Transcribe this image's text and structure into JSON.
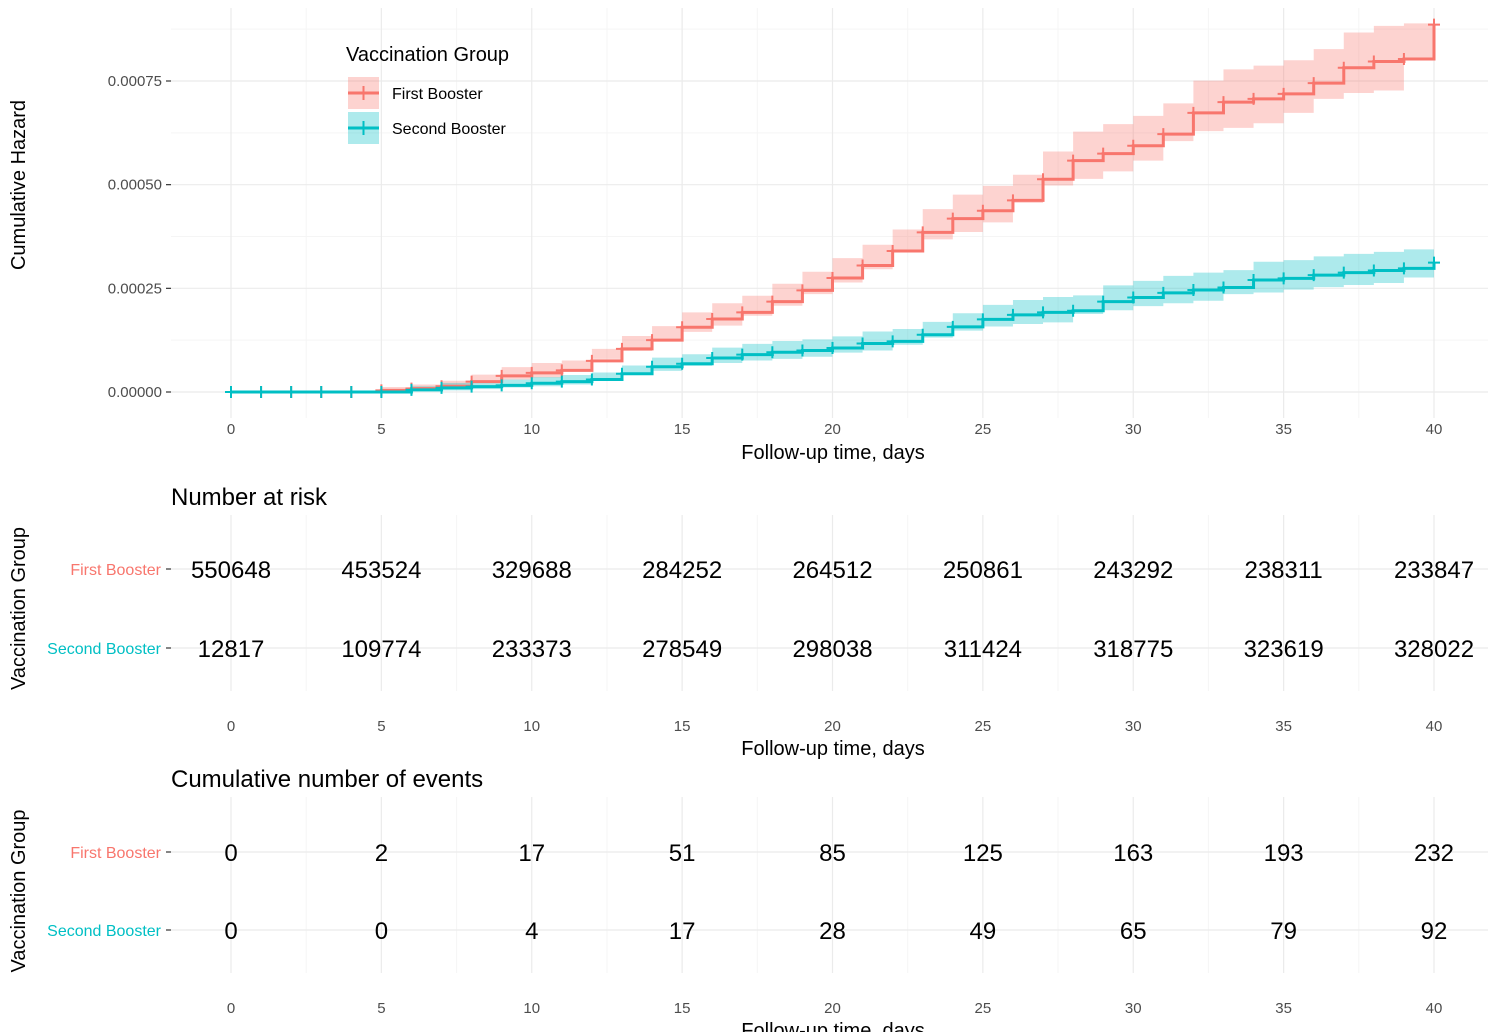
{
  "chart_data": [
    {
      "type": "line",
      "step": true,
      "xlabel": "Follow-up time, days",
      "ylabel": "Cumulative Hazard",
      "xlim": [
        0,
        40
      ],
      "ylim": [
        0,
        0.00075
      ],
      "xticks": [
        "0",
        "5",
        "10",
        "15",
        "20",
        "25",
        "30",
        "35",
        "40"
      ],
      "yticks": [
        "0.00000",
        "0.00025",
        "0.00050",
        "0.00075"
      ],
      "grid": true,
      "legend": {
        "title": "Vaccination Group",
        "placement": "top-left",
        "entries": [
          "First Booster",
          "Second Booster"
        ]
      },
      "series": [
        {
          "name": "First Booster",
          "color": "#f8766d",
          "x": [
            0,
            1,
            2,
            3,
            4,
            5,
            6,
            7,
            8,
            9,
            10,
            11,
            12,
            13,
            14,
            15,
            16,
            17,
            18,
            19,
            20,
            21,
            22,
            23,
            24,
            25,
            26,
            27,
            28,
            29,
            30,
            31,
            32,
            33,
            34,
            35,
            36,
            37,
            38,
            39,
            40
          ],
          "y": [
            0,
            0,
            0,
            0,
            0,
            4e-06,
            8e-06,
            1.4e-05,
            2.5e-05,
            3.9e-05,
            4.6e-05,
            5.2e-05,
            7.5e-05,
            0.000104,
            0.000125,
            0.000156,
            0.000176,
            0.000192,
            0.000218,
            0.000245,
            0.000275,
            0.000305,
            0.00034,
            0.000385,
            0.000418,
            0.000437,
            0.000462,
            0.000513,
            0.000558,
            0.000575,
            0.000594,
            0.000622,
            0.000673,
            0.000699,
            0.000707,
            0.000719,
            0.000745,
            0.000782,
            0.000797,
            0.000803,
            0.000886
          ],
          "ci_lower": [
            0,
            0,
            0,
            0,
            0,
            0,
            1e-06,
            5e-06,
            1.3e-05,
            2.4e-05,
            3e-05,
            3.5e-05,
            5.4e-05,
            8e-05,
            9.9e-05,
            0.000127,
            0.000145,
            0.00016,
            0.000184,
            0.000208,
            0.000236,
            0.000264,
            0.000296,
            0.000338,
            0.000368,
            0.000386,
            0.000409,
            0.000456,
            0.000498,
            0.000514,
            0.000532,
            0.000558,
            0.000605,
            0.000629,
            0.000637,
            0.000648,
            0.000673,
            0.000707,
            0.000721,
            0.000727,
            0.000805
          ],
          "ci_upper": [
            0,
            0,
            0,
            0,
            0,
            1.2e-05,
            1.8e-05,
            2.7e-05,
            4.2e-05,
            6e-05,
            7e-05,
            7.6e-05,
            0.000104,
            0.000135,
            0.000159,
            0.000192,
            0.000214,
            0.000232,
            0.000261,
            0.00029,
            0.000323,
            0.000355,
            0.000392,
            0.000441,
            0.000476,
            0.000497,
            0.000524,
            0.00058,
            0.000628,
            0.000646,
            0.000666,
            0.000696,
            0.000751,
            0.000778,
            0.000787,
            0.0008,
            0.000827,
            0.000867,
            0.000883,
            0.000889,
            0.000903
          ]
        },
        {
          "name": "Second Booster",
          "color": "#00bfc4",
          "x": [
            0,
            1,
            2,
            3,
            4,
            5,
            6,
            7,
            8,
            9,
            10,
            11,
            12,
            13,
            14,
            15,
            16,
            17,
            18,
            19,
            20,
            21,
            22,
            23,
            24,
            25,
            26,
            27,
            28,
            29,
            30,
            31,
            32,
            33,
            34,
            35,
            36,
            37,
            38,
            39,
            40
          ],
          "y": [
            0,
            0,
            0,
            0,
            0,
            0,
            5e-06,
            1e-05,
            1.3e-05,
            1.6e-05,
            2.1e-05,
            2.5e-05,
            3e-05,
            4.4e-05,
            6.1e-05,
            6.8e-05,
            8.2e-05,
            9e-05,
            9.6e-05,
            0.0001,
            0.000106,
            0.000117,
            0.000122,
            0.000138,
            0.000157,
            0.000175,
            0.000186,
            0.000192,
            0.000196,
            0.000218,
            0.000228,
            0.000239,
            0.000246,
            0.000252,
            0.00027,
            0.000274,
            0.000282,
            0.000288,
            0.000293,
            0.000298,
            0.000312
          ],
          "ci_lower": [
            0,
            0,
            0,
            0,
            0,
            0,
            0,
            2e-06,
            4e-06,
            7e-06,
            1.1e-05,
            1.4e-05,
            1.8e-05,
            3e-05,
            4.5e-05,
            5.1e-05,
            6.3e-05,
            7e-05,
            7.6e-05,
            8e-05,
            8.5e-05,
            9.5e-05,
            0.0001,
            0.000114,
            0.000131,
            0.000148,
            0.000158,
            0.000164,
            0.000168,
            0.000188,
            0.000197,
            0.000207,
            0.000214,
            0.00022,
            0.000236,
            0.00024,
            0.000247,
            0.000253,
            0.000258,
            0.000263,
            0.000276
          ],
          "ci_upper": [
            0,
            0,
            0,
            0,
            0,
            0,
            1.4e-05,
            2.2e-05,
            2.6e-05,
            3e-05,
            3.6e-05,
            4.1e-05,
            4.7e-05,
            6.4e-05,
            8.3e-05,
            9.1e-05,
            0.000107,
            0.000116,
            0.000123,
            0.000127,
            0.000134,
            0.000146,
            0.000152,
            0.000169,
            0.00019,
            0.00021,
            0.000222,
            0.000229,
            0.000233,
            0.000257,
            0.000268,
            0.00028,
            0.000288,
            0.000294,
            0.000314,
            0.000318,
            0.000327,
            0.000333,
            0.000338,
            0.000344,
            0.00036
          ]
        }
      ]
    },
    {
      "type": "table",
      "title": "Number at risk",
      "xlabel": "Follow-up time, days",
      "ylabel": "Vaccination Group",
      "columns": [
        "0",
        "5",
        "10",
        "15",
        "20",
        "25",
        "30",
        "35",
        "40"
      ],
      "rows": [
        {
          "name": "First Booster",
          "color": "#f8766d",
          "values": [
            "550648",
            "453524",
            "329688",
            "284252",
            "264512",
            "250861",
            "243292",
            "238311",
            "233847"
          ]
        },
        {
          "name": "Second Booster",
          "color": "#00bfc4",
          "values": [
            "12817",
            "109774",
            "233373",
            "278549",
            "298038",
            "311424",
            "318775",
            "323619",
            "328022"
          ]
        }
      ]
    },
    {
      "type": "table",
      "title": "Cumulative number of events",
      "xlabel": "Follow-up time, days",
      "ylabel": "Vaccination Group",
      "columns": [
        "0",
        "5",
        "10",
        "15",
        "20",
        "25",
        "30",
        "35",
        "40"
      ],
      "rows": [
        {
          "name": "First Booster",
          "color": "#f8766d",
          "values": [
            "0",
            "2",
            "17",
            "51",
            "85",
            "125",
            "163",
            "193",
            "232"
          ]
        },
        {
          "name": "Second Booster",
          "color": "#00bfc4",
          "values": [
            "0",
            "0",
            "4",
            "17",
            "28",
            "49",
            "65",
            "79",
            "92"
          ]
        }
      ]
    }
  ]
}
